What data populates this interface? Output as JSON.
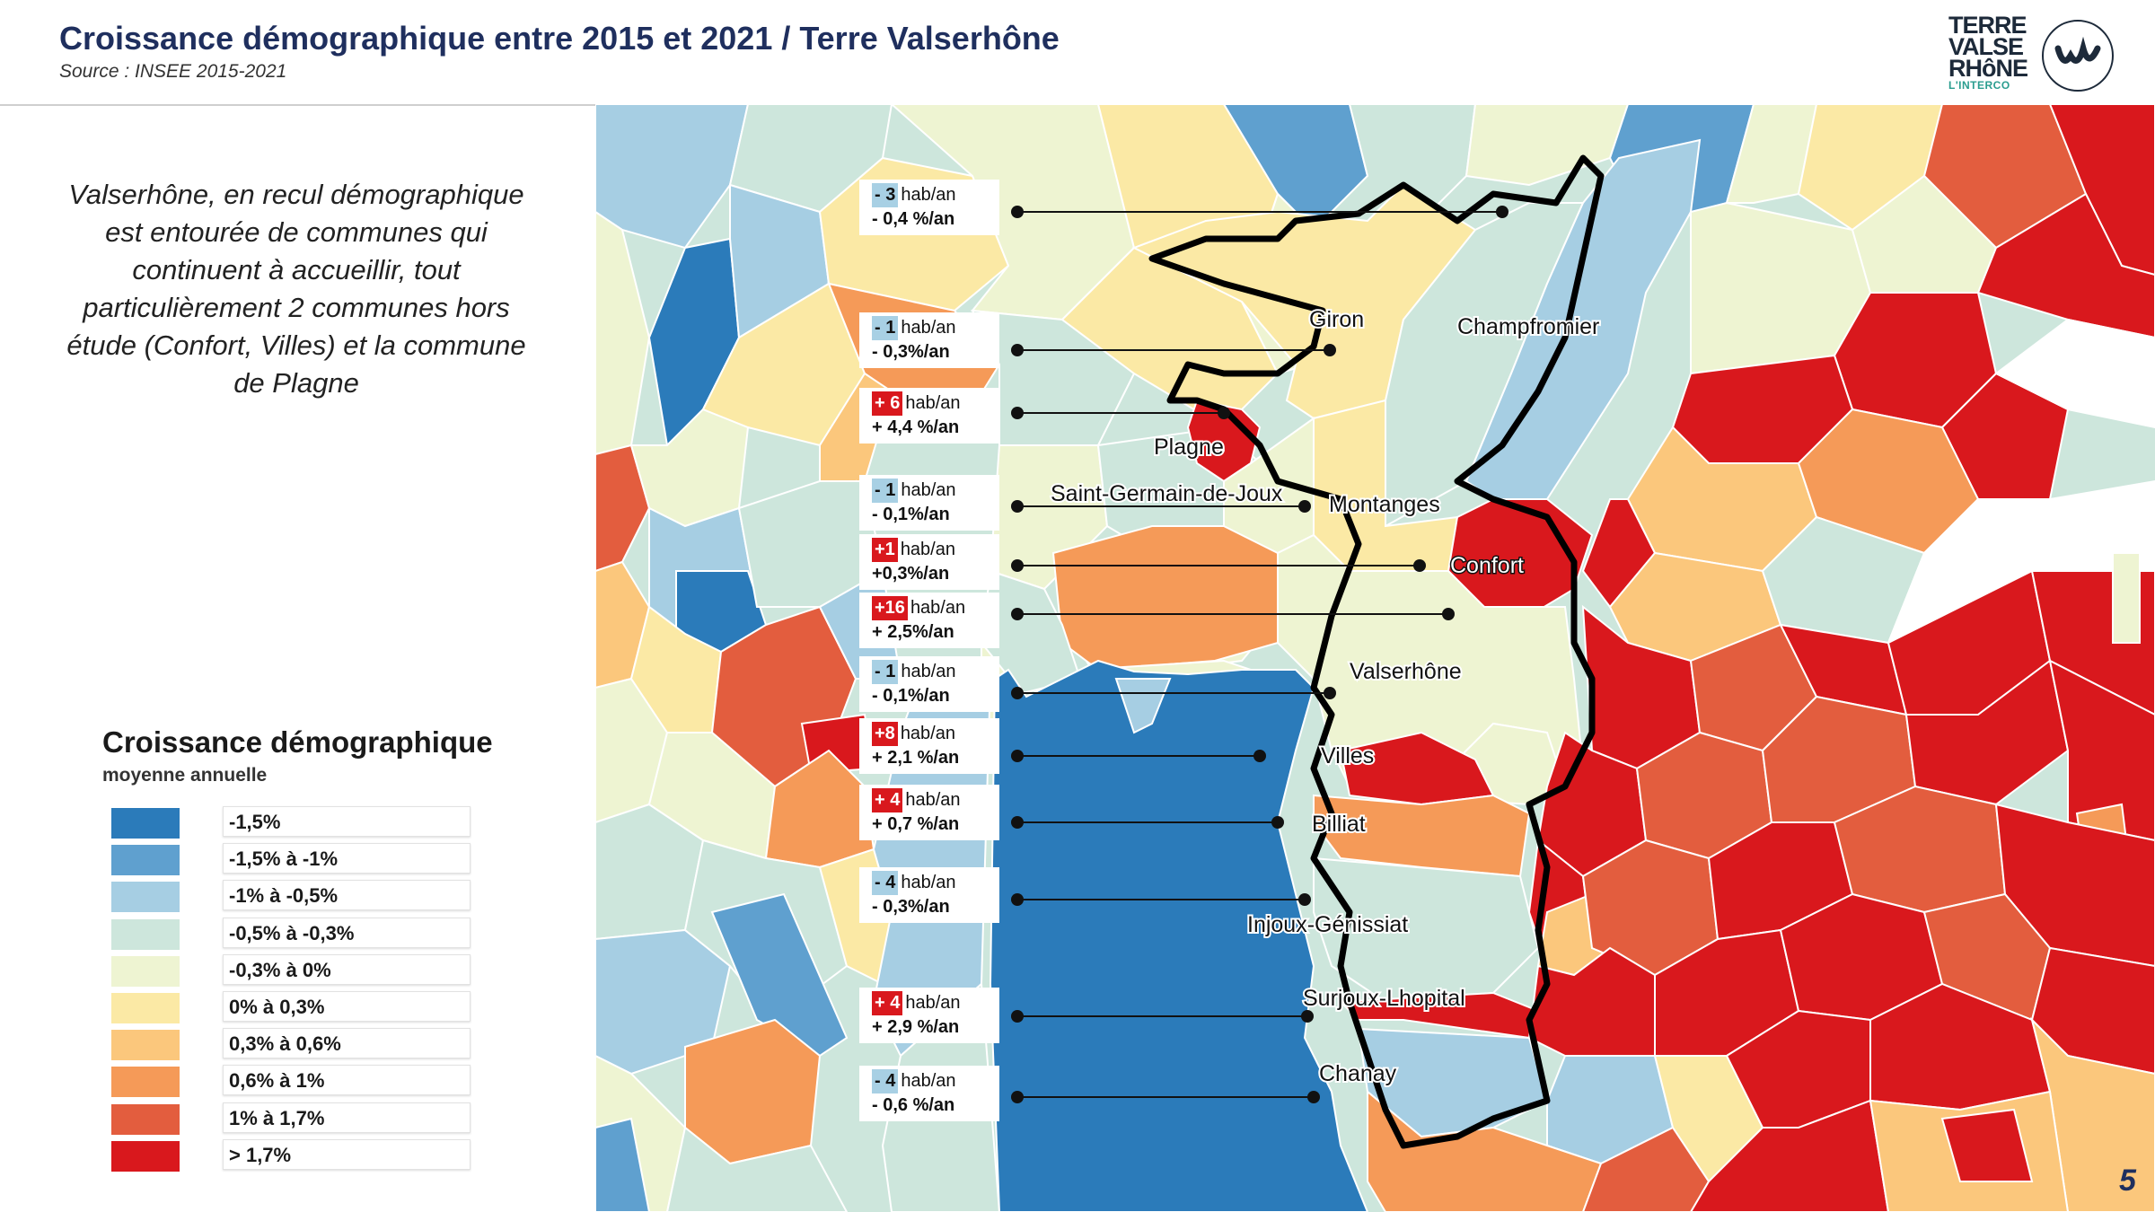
{
  "header": {
    "title": "Croissance démographique entre 2015 et 2021  / Terre Valserhône",
    "subtitle": "Source : INSEE 2015-2021",
    "logo_lines": [
      "TERRE",
      "VALSE",
      "RHôNE"
    ],
    "logo_sub": "L'INTERCO"
  },
  "intro": "Valserhône, en recul démographique est entourée de communes qui continuent à accueillir, tout particulièrement 2 communes hors étude (Confort, Villes) et la commune de Plagne",
  "legend": {
    "title": "Croissance démographique",
    "subtitle": "moyenne annuelle",
    "items": [
      {
        "label": "-1,5%",
        "color": "#2b7bba"
      },
      {
        "label": "-1,5% à -1%",
        "color": "#5fa0cf"
      },
      {
        "label": "-1% à -0,5%",
        "color": "#a6cee3"
      },
      {
        "label": "-0,5% à -0,3%",
        "color": "#cde6dc"
      },
      {
        "label": "-0,3% à 0%",
        "color": "#eef4d2"
      },
      {
        "label": "0% à 0,3%",
        "color": "#fbe9a5"
      },
      {
        "label": "0,3% à 0,6%",
        "color": "#fbc77c"
      },
      {
        "label": "0,6% à 1%",
        "color": "#f59a58"
      },
      {
        "label": "1% à 1,7%",
        "color": "#e35d3e"
      },
      {
        "label": "> 1,7%",
        "color": "#d9181d"
      }
    ]
  },
  "communes": {
    "giron": "Giron",
    "champfromier": "Champfromier",
    "plagne": "Plagne",
    "saint_germain": "Saint-Germain-de-Joux",
    "montanges": "Montanges",
    "confort": "Confort",
    "valserhone": "Valserhône",
    "villes": "Villes",
    "billiat": "Billiat",
    "injoux": "Injoux-Génissiat",
    "surjoux": "Surjoux-Lhopital",
    "chanay": "Chanay"
  },
  "callouts": [
    {
      "badge": "- 3",
      "sign": "neg",
      "hab": "hab/an",
      "pct": "- 0,4 %/an"
    },
    {
      "badge": "- 1",
      "sign": "neg",
      "hab": "hab/an",
      "pct": "- 0,3%/an"
    },
    {
      "badge": "+ 6",
      "sign": "pos",
      "hab": "hab/an",
      "pct": "+ 4,4 %/an"
    },
    {
      "badge": "- 1",
      "sign": "neg",
      "hab": "hab/an",
      "pct": "- 0,1%/an"
    },
    {
      "badge": "+1",
      "sign": "pos",
      "hab": "hab/an",
      "pct": "+0,3%/an"
    },
    {
      "badge": "+16",
      "sign": "pos",
      "hab": "hab/an",
      "pct": "+ 2,5%/an"
    },
    {
      "badge": "- 1",
      "sign": "neg",
      "hab": "hab/an",
      "pct": "- 0,1%/an"
    },
    {
      "badge": "+8",
      "sign": "pos",
      "hab": "hab/an",
      "pct": "+ 2,1 %/an"
    },
    {
      "badge": "+ 4",
      "sign": "pos",
      "hab": "hab/an",
      "pct": "+ 0,7 %/an"
    },
    {
      "badge": "- 4",
      "sign": "neg",
      "hab": "hab/an",
      "pct": "- 0,3%/an"
    },
    {
      "badge": "+ 4",
      "sign": "pos",
      "hab": "hab/an",
      "pct": "+ 2,9 %/an"
    },
    {
      "badge": "- 4",
      "sign": "neg",
      "hab": "hab/an",
      "pct": "- 0,6 %/an"
    }
  ],
  "page_number": "5"
}
